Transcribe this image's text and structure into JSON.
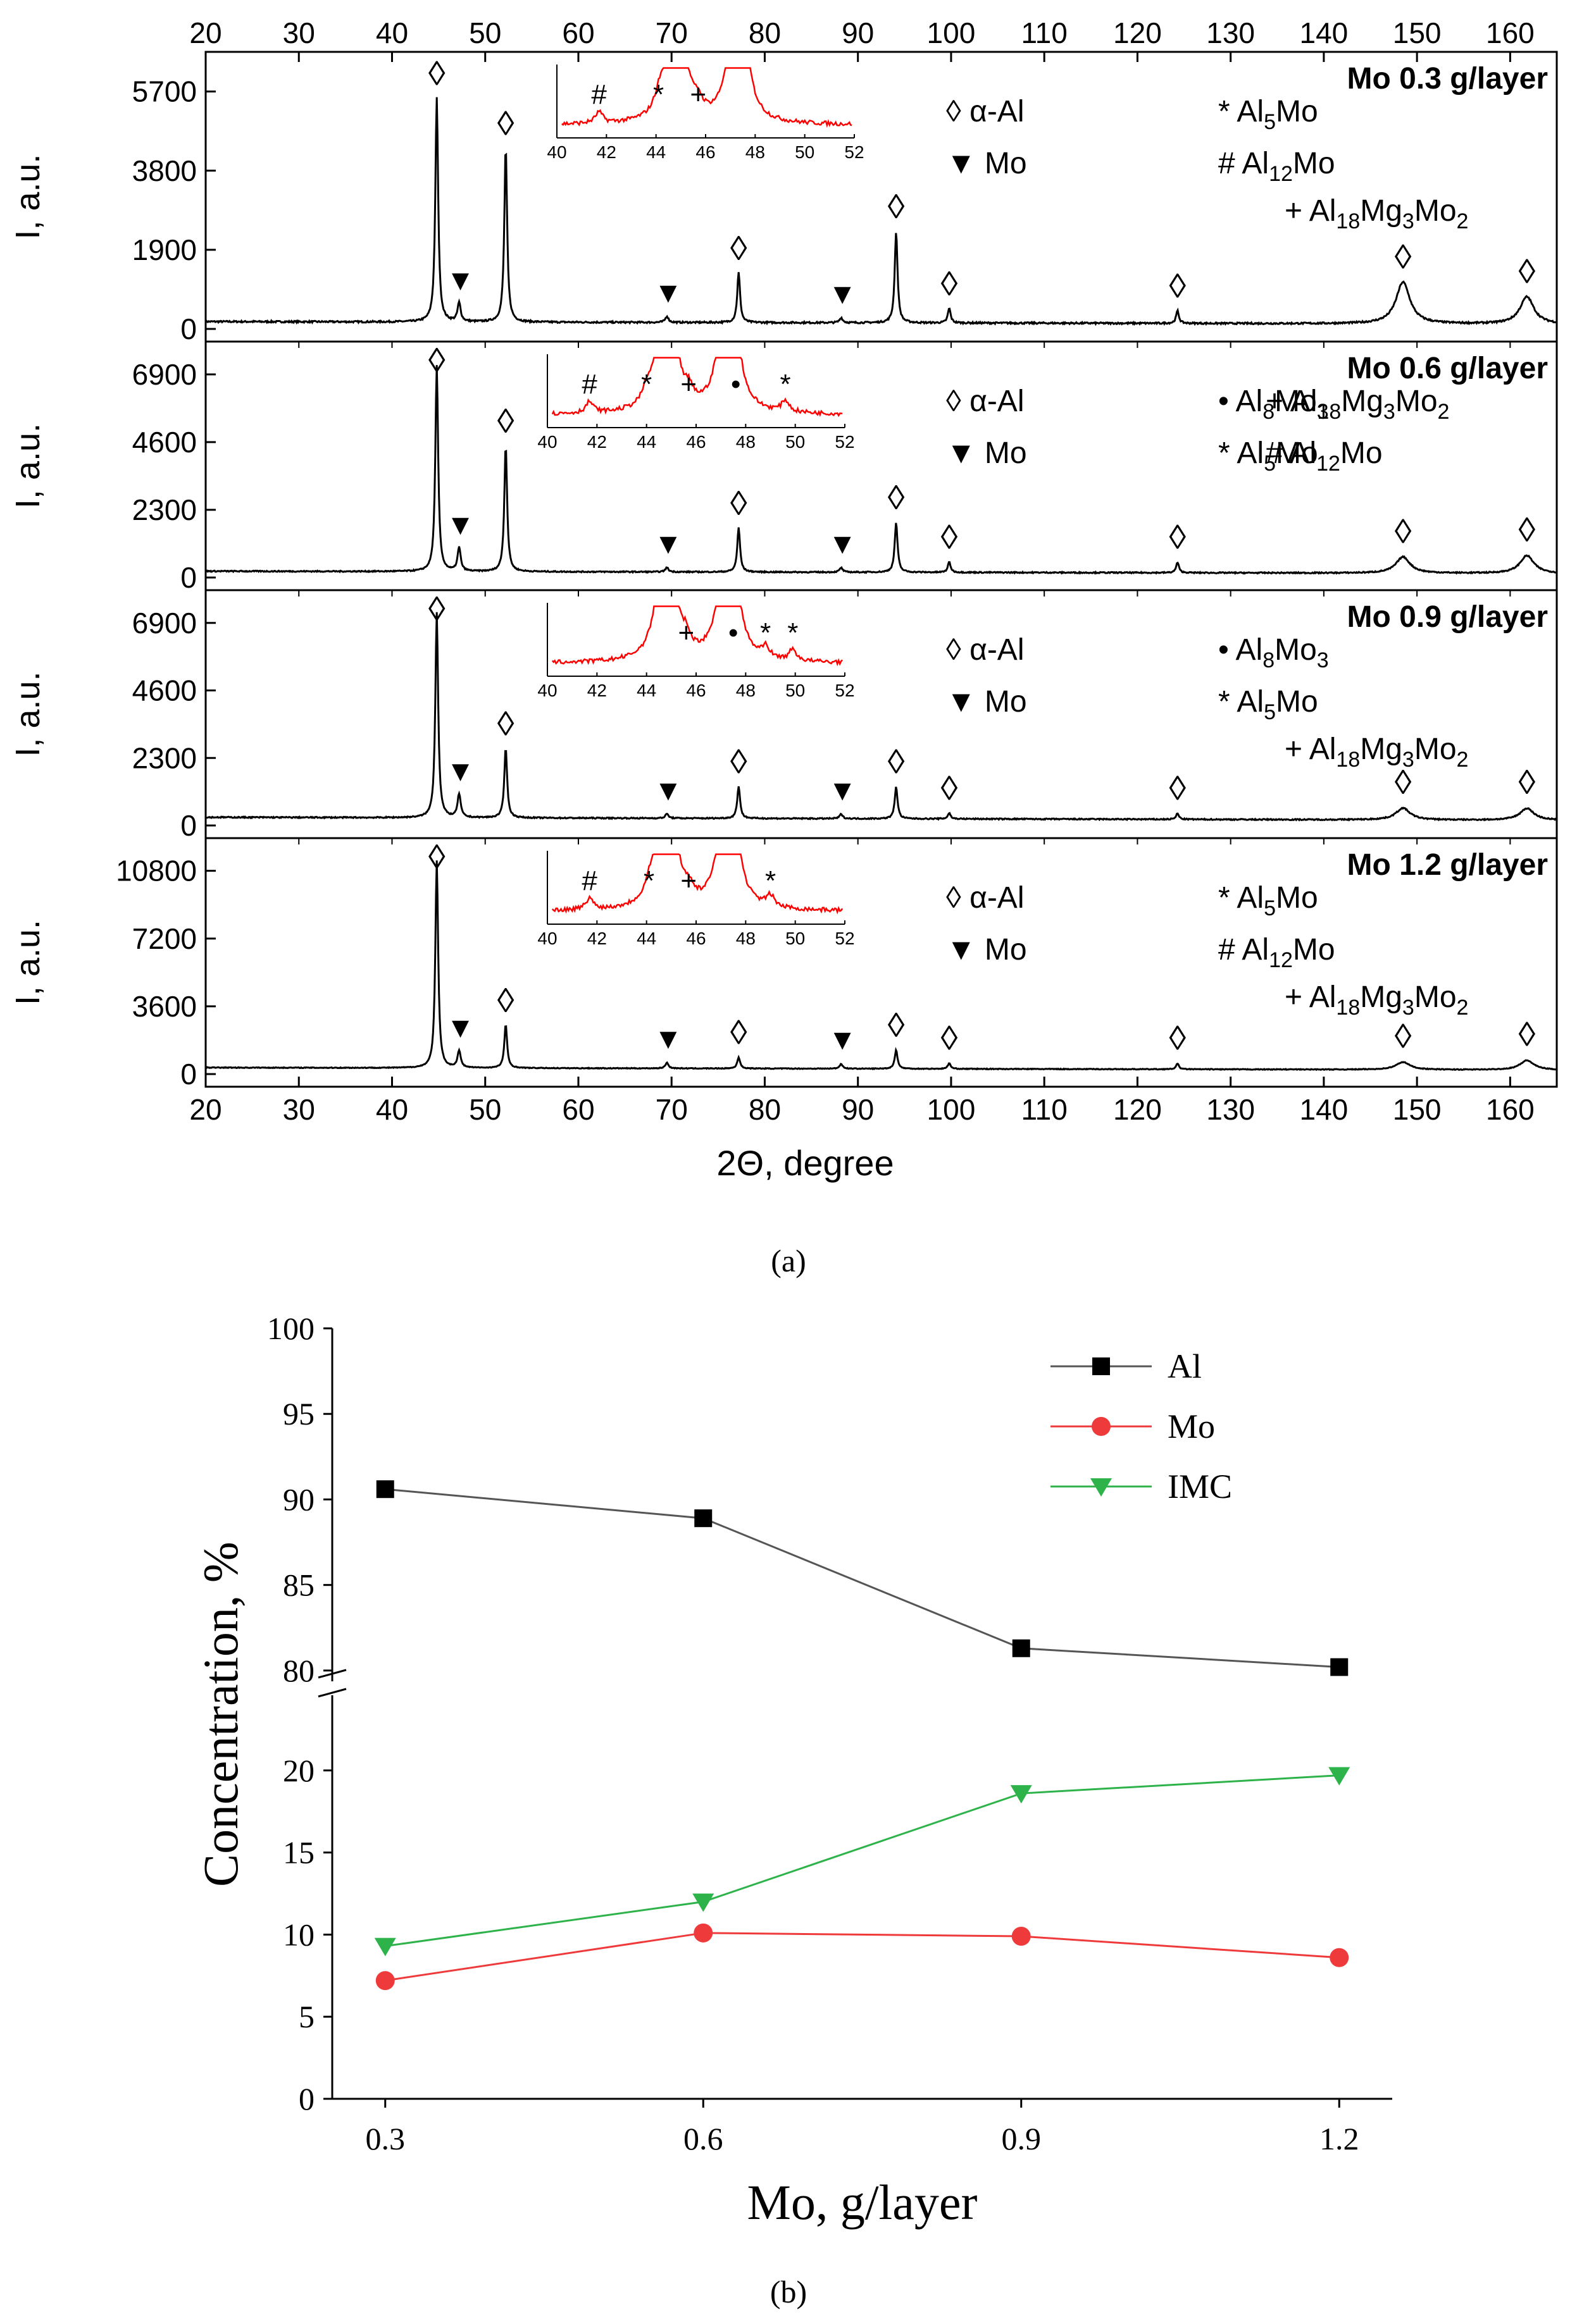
{
  "figure_labels": {
    "a": "(a)",
    "b": "(b)"
  },
  "chart_data": [
    {
      "type": "line",
      "panel": "a",
      "xlabel": "2Θ, degree",
      "ylabel": "I, a.u.",
      "xlim": [
        20,
        165
      ],
      "xticks": [
        20,
        30,
        40,
        50,
        60,
        70,
        80,
        90,
        100,
        110,
        120,
        130,
        140,
        150,
        160
      ],
      "markers": {
        "diamond": "◊",
        "triangle": "▼",
        "asterisk": "*",
        "hash": "#",
        "plus": "+",
        "dot": "•"
      },
      "peaks": {
        "al": [
          44.8,
          52.2,
          77.2,
          94.1,
          99.8,
          124.3,
          148.5,
          161.8
        ],
        "mo": [
          47.2,
          69.5,
          88.2
        ]
      },
      "colors": {
        "pattern": "#000000",
        "inset": "#ff0000",
        "axis": "#000000"
      },
      "panels": [
        {
          "title": "Mo 0.3 g/layer",
          "ylim": [
            0,
            6500
          ],
          "yticks": [
            "0",
            "1900",
            "3800",
            "5700"
          ],
          "yvals": [
            0,
            1900,
            3800,
            5700
          ],
          "baseline": 120,
          "al_heights": [
            5400,
            4200,
            1200,
            2200,
            350,
            300,
            1000,
            650
          ],
          "mo_heights": [
            450,
            150,
            120
          ],
          "legend": [
            {
              "sym": "◊",
              "text": "α-Al",
              "sub": "",
              "rest": "",
              "sub2": "",
              "rest2": ""
            },
            {
              "sym": "*",
              "text": "Al",
              "sub": "5",
              "rest": "Mo",
              "sub2": "",
              "rest2": ""
            },
            {
              "sym": "▼",
              "text": "Mo",
              "sub": "",
              "rest": "",
              "sub2": "",
              "rest2": ""
            },
            {
              "sym": "#",
              "text": "Al",
              "sub": "12",
              "rest": "Mo",
              "sub2": "",
              "rest2": ""
            },
            {
              "sym": "+",
              "text": "Al",
              "sub": "18",
              "rest": "Mg",
              "sub2": "3",
              "rest2": "Mo",
              "sub3": "2"
            }
          ],
          "inset": {
            "xticks": [
              "40",
              "42",
              "44",
              "46",
              "48",
              "50",
              "52"
            ],
            "marks": [
              {
                "s": "#",
                "x": 41.7
              },
              {
                "s": "*",
                "x": 44.1
              },
              {
                "s": "+",
                "x": 45.7
              }
            ]
          }
        },
        {
          "title": "Mo 0.6 g/layer",
          "ylim": [
            0,
            7800
          ],
          "yticks": [
            "0",
            "2300",
            "4600",
            "6900"
          ],
          "yvals": [
            0,
            2300,
            4600,
            6900
          ],
          "baseline": 150,
          "al_heights": [
            7000,
            4300,
            1500,
            1700,
            350,
            350,
            550,
            600
          ],
          "mo_heights": [
            800,
            150,
            150
          ],
          "legend": [
            {
              "sym": "◊",
              "text": "α-Al",
              "sub": "",
              "rest": "",
              "sub2": "",
              "rest2": ""
            },
            {
              "sym": "•",
              "text": "Al",
              "sub": "8",
              "rest": "Mo",
              "sub2": "3",
              "rest2": ""
            },
            {
              "sym": "+",
              "text": "Al",
              "sub": "18",
              "rest": "Mg",
              "sub2": "3",
              "rest2": "Mo",
              "sub3": "2"
            },
            {
              "sym": "▼",
              "text": "Mo",
              "sub": "",
              "rest": "",
              "sub2": "",
              "rest2": ""
            },
            {
              "sym": "*",
              "text": "Al",
              "sub": "5",
              "rest": "Mo",
              "sub2": "",
              "rest2": ""
            },
            {
              "sym": "#",
              "text": "Al",
              "sub": "12",
              "rest": "Mo",
              "sub2": "",
              "rest2": ""
            }
          ],
          "inset": {
            "xticks": [
              "40",
              "42",
              "44",
              "46",
              "48",
              "50",
              "52"
            ],
            "marks": [
              {
                "s": "#",
                "x": 41.7
              },
              {
                "s": "*",
                "x": 44.0
              },
              {
                "s": "+",
                "x": 45.7
              },
              {
                "s": "•",
                "x": 47.6
              },
              {
                "s": "*",
                "x": 49.6
              }
            ]
          }
        },
        {
          "title": "Mo 0.9 g/layer",
          "ylim": [
            0,
            7800
          ],
          "yticks": [
            "0",
            "2300",
            "4600",
            "6900"
          ],
          "yvals": [
            0,
            2300,
            4600,
            6900
          ],
          "baseline": 200,
          "al_heights": [
            7000,
            2400,
            1100,
            1100,
            200,
            200,
            400,
            400
          ],
          "mo_heights": [
            800,
            150,
            150
          ],
          "legend": [
            {
              "sym": "◊",
              "text": "α-Al",
              "sub": "",
              "rest": "",
              "sub2": "",
              "rest2": ""
            },
            {
              "sym": "•",
              "text": "Al",
              "sub": "8",
              "rest": "Mo",
              "sub2": "3",
              "rest2": ""
            },
            {
              "sym": "▼",
              "text": "Mo",
              "sub": "",
              "rest": "",
              "sub2": "",
              "rest2": ""
            },
            {
              "sym": "*",
              "text": "Al",
              "sub": "5",
              "rest": "Mo",
              "sub2": "",
              "rest2": ""
            },
            {
              "sym": "+",
              "text": "Al",
              "sub": "18",
              "rest": "Mg",
              "sub2": "3",
              "rest2": "Mo",
              "sub3": "2"
            }
          ],
          "inset": {
            "xticks": [
              "40",
              "42",
              "44",
              "46",
              "48",
              "50",
              "52"
            ],
            "marks": [
              {
                "s": "+",
                "x": 45.6
              },
              {
                "s": "•",
                "x": 47.5
              },
              {
                "s": "*",
                "x": 48.8
              },
              {
                "s": "*",
                "x": 49.9
              }
            ]
          }
        },
        {
          "title": "Mo 1.2 g/layer",
          "ylim": [
            0,
            12200
          ],
          "yticks": [
            "0",
            "3600",
            "7200",
            "10800"
          ],
          "yvals": [
            0,
            3600,
            7200,
            10800
          ],
          "baseline": 250,
          "al_heights": [
            11000,
            2300,
            600,
            1000,
            300,
            300,
            400,
            500
          ],
          "mo_heights": [
            900,
            300,
            250
          ],
          "legend": [
            {
              "sym": "◊",
              "text": "α-Al",
              "sub": "",
              "rest": "",
              "sub2": "",
              "rest2": ""
            },
            {
              "sym": "*",
              "text": "Al",
              "sub": "5",
              "rest": "Mo",
              "sub2": "",
              "rest2": ""
            },
            {
              "sym": "▼",
              "text": "Mo",
              "sub": "",
              "rest": "",
              "sub2": "",
              "rest2": ""
            },
            {
              "sym": "#",
              "text": "Al",
              "sub": "12",
              "rest": "Mo",
              "sub2": "",
              "rest2": ""
            },
            {
              "sym": "+",
              "text": "Al",
              "sub": "18",
              "rest": "Mg",
              "sub2": "3",
              "rest2": "Mo",
              "sub3": "2"
            }
          ],
          "inset": {
            "xticks": [
              "40",
              "42",
              "44",
              "46",
              "48",
              "50",
              "52"
            ],
            "marks": [
              {
                "s": "#",
                "x": 41.7
              },
              {
                "s": "*",
                "x": 44.1
              },
              {
                "s": "+",
                "x": 45.7
              },
              {
                "s": "*",
                "x": 49.0
              }
            ]
          }
        }
      ]
    },
    {
      "type": "line",
      "panel": "b",
      "xlabel": "Mo, g/layer",
      "ylabel": "Concentration, %",
      "categories": [
        "0.3",
        "0.6",
        "0.9",
        "1.2"
      ],
      "x": [
        0.3,
        0.6,
        0.9,
        1.2
      ],
      "xlim": [
        0.25,
        1.25
      ],
      "ylim_upper": [
        78,
        100
      ],
      "ylim_lower": [
        0,
        24
      ],
      "yticks_upper": [
        "80",
        "85",
        "90",
        "95",
        "100"
      ],
      "yticks_upper_vals": [
        80,
        85,
        90,
        95,
        100
      ],
      "yticks_lower": [
        "0",
        "5",
        "10",
        "15",
        "20"
      ],
      "yticks_lower_vals": [
        0,
        5,
        10,
        15,
        20
      ],
      "series": [
        {
          "name": "Al",
          "values": [
            90.6,
            88.9,
            81.3,
            80.2
          ],
          "color": "#000000",
          "line": "#555555",
          "marker": "square",
          "axis": "upper"
        },
        {
          "name": "Mo",
          "values": [
            7.2,
            10.1,
            9.9,
            8.6
          ],
          "color": "#ee3a3a",
          "line": "#ee3a3a",
          "marker": "circle",
          "axis": "lower"
        },
        {
          "name": "IMC",
          "values": [
            9.3,
            12.0,
            18.6,
            19.7
          ],
          "color": "#2db34a",
          "line": "#2db34a",
          "marker": "triangle-down",
          "axis": "lower"
        }
      ]
    }
  ]
}
